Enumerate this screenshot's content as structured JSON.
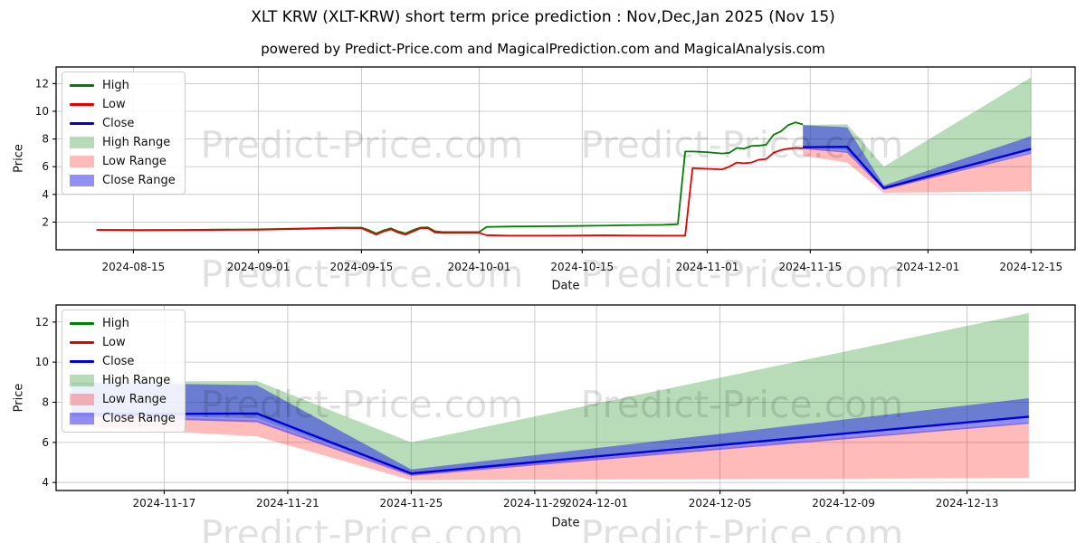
{
  "page": {
    "title": "XLT KRW (XLT-KRW) short term price prediction : Nov,Dec,Jan 2025 (Nov 15)",
    "axes_title": "powered by Predict-Price.com and MagicalPrediction.com and MagicalAnalysis.com",
    "watermark": "Predict-Price.com"
  },
  "colors": {
    "high": "#008000",
    "low": "#e60000",
    "close": "#0000e0",
    "high_range": "rgba(0,128,0,0.28)",
    "low_range": "rgba(255,0,0,0.27)",
    "close_range": "rgba(20,20,235,0.47)",
    "grid": "#c6c6c6",
    "axis": "#000000",
    "text": "#111111",
    "watermark": "rgba(0,0,0,0.12)"
  },
  "legend": {
    "position": "upper left",
    "items": [
      {
        "label": "High",
        "type": "line",
        "color_key": "high"
      },
      {
        "label": "Low",
        "type": "line",
        "color_key": "low"
      },
      {
        "label": "Close",
        "type": "line",
        "color_key": "close"
      },
      {
        "label": "High Range",
        "type": "patch",
        "color_key": "high_range"
      },
      {
        "label": "Low Range",
        "type": "patch",
        "color_key": "low_range"
      },
      {
        "label": "Close Range",
        "type": "patch",
        "color_key": "close_range"
      }
    ]
  },
  "chart_data": [
    {
      "type": "line",
      "name": "overview-chart",
      "title": "powered by Predict-Price.com and MagicalPrediction.com and MagicalAnalysis.com",
      "xlabel": "Date",
      "ylabel": "Price",
      "grid": true,
      "legend_position": "upper left",
      "xlim": [
        "2024-08-04T12",
        "2024-12-21T00"
      ],
      "ylim": [
        0,
        13.2
      ],
      "yticks": [
        2,
        4,
        6,
        8,
        10,
        12
      ],
      "xticks": [
        "2024-08-15",
        "2024-09-01",
        "2024-09-15",
        "2024-10-01",
        "2024-10-15",
        "2024-11-01",
        "2024-11-15",
        "2024-12-01",
        "2024-12-15"
      ],
      "series": [
        {
          "name": "High",
          "type": "line",
          "color_key": "high",
          "width": 1.8,
          "x": [
            "2024-08-10",
            "2024-08-16",
            "2024-08-22",
            "2024-09-01",
            "2024-09-08",
            "2024-09-12",
            "2024-09-15",
            "2024-09-16",
            "2024-09-17",
            "2024-09-18",
            "2024-09-19",
            "2024-09-20",
            "2024-09-21",
            "2024-09-22",
            "2024-09-23",
            "2024-09-24",
            "2024-09-25",
            "2024-09-26",
            "2024-10-01",
            "2024-10-02",
            "2024-10-05",
            "2024-10-10",
            "2024-10-14",
            "2024-10-18",
            "2024-10-22",
            "2024-10-26",
            "2024-10-28",
            "2024-10-29",
            "2024-10-30",
            "2024-11-01",
            "2024-11-03",
            "2024-11-04",
            "2024-11-05",
            "2024-11-06",
            "2024-11-07",
            "2024-11-08",
            "2024-11-09",
            "2024-11-10",
            "2024-11-11",
            "2024-11-12",
            "2024-11-13",
            "2024-11-14"
          ],
          "y": [
            1.44,
            1.43,
            1.44,
            1.48,
            1.55,
            1.6,
            1.6,
            1.42,
            1.18,
            1.4,
            1.55,
            1.33,
            1.18,
            1.42,
            1.6,
            1.62,
            1.34,
            1.28,
            1.28,
            1.65,
            1.68,
            1.7,
            1.72,
            1.75,
            1.78,
            1.8,
            1.85,
            7.1,
            7.1,
            7.05,
            6.95,
            7.0,
            7.35,
            7.3,
            7.5,
            7.52,
            7.58,
            8.3,
            8.55,
            9.0,
            9.2,
            9.05
          ]
        },
        {
          "name": "Low",
          "type": "line",
          "color_key": "low",
          "width": 1.8,
          "x": [
            "2024-08-10",
            "2024-08-16",
            "2024-08-22",
            "2024-09-01",
            "2024-09-08",
            "2024-09-12",
            "2024-09-15",
            "2024-09-16",
            "2024-09-17",
            "2024-09-18",
            "2024-09-19",
            "2024-09-20",
            "2024-09-21",
            "2024-09-22",
            "2024-09-23",
            "2024-09-24",
            "2024-09-25",
            "2024-09-26",
            "2024-10-01",
            "2024-10-02",
            "2024-10-05",
            "2024-10-10",
            "2024-10-14",
            "2024-10-18",
            "2024-10-22",
            "2024-10-26",
            "2024-10-28",
            "2024-10-29",
            "2024-10-30",
            "2024-11-01",
            "2024-11-03",
            "2024-11-04",
            "2024-11-05",
            "2024-11-06",
            "2024-11-07",
            "2024-11-08",
            "2024-11-09",
            "2024-11-10",
            "2024-11-11",
            "2024-11-12",
            "2024-11-13",
            "2024-11-14"
          ],
          "y": [
            1.43,
            1.41,
            1.42,
            1.45,
            1.52,
            1.57,
            1.56,
            1.33,
            1.1,
            1.32,
            1.48,
            1.24,
            1.1,
            1.32,
            1.55,
            1.57,
            1.25,
            1.22,
            1.22,
            1.05,
            1.02,
            1.02,
            1.03,
            1.04,
            1.03,
            1.02,
            1.02,
            1.02,
            5.9,
            5.85,
            5.8,
            6.0,
            6.3,
            6.25,
            6.3,
            6.5,
            6.55,
            7.0,
            7.2,
            7.3,
            7.35,
            7.32
          ]
        },
        {
          "name": "Close",
          "type": "line",
          "color_key": "close",
          "width": 2.4,
          "x": [
            "2024-11-14",
            "2024-11-20",
            "2024-11-25",
            "2024-12-15"
          ],
          "y": [
            7.4,
            7.44,
            4.45,
            7.28
          ]
        },
        {
          "name": "High Range",
          "type": "band",
          "color_key": "high_range",
          "x": [
            "2024-11-14",
            "2024-11-20",
            "2024-11-25",
            "2024-12-15"
          ],
          "upper": [
            9.02,
            9.06,
            6.0,
            12.45
          ],
          "lower": [
            7.4,
            7.2,
            4.45,
            7.3
          ]
        },
        {
          "name": "Low Range",
          "type": "band",
          "color_key": "low_range",
          "x": [
            "2024-11-14",
            "2024-11-20",
            "2024-11-25",
            "2024-12-15"
          ],
          "upper": [
            7.4,
            7.1,
            4.45,
            7.0
          ],
          "lower": [
            6.8,
            6.3,
            4.12,
            4.22
          ]
        },
        {
          "name": "Close Range",
          "type": "band",
          "color_key": "close_range",
          "x": [
            "2024-11-14",
            "2024-11-20",
            "2024-11-25",
            "2024-12-15"
          ],
          "upper": [
            9.0,
            8.85,
            4.65,
            8.2
          ],
          "lower": [
            7.28,
            7.0,
            4.33,
            6.93
          ]
        }
      ]
    },
    {
      "type": "line",
      "name": "forecast-chart",
      "xlabel": "Date",
      "ylabel": "Price",
      "grid": true,
      "legend_position": "upper left",
      "xlim": [
        "2024-11-13T12",
        "2024-12-16T12"
      ],
      "ylim": [
        3.6,
        12.85
      ],
      "yticks": [
        4,
        6,
        8,
        10,
        12
      ],
      "xticks": [
        "2024-11-17",
        "2024-11-21",
        "2024-11-25",
        "2024-11-29",
        "2024-12-01",
        "2024-12-05",
        "2024-12-09",
        "2024-12-13"
      ],
      "series": [
        {
          "name": "Close",
          "type": "line",
          "color_key": "close",
          "width": 2.4,
          "x": [
            "2024-11-14",
            "2024-11-20",
            "2024-11-25",
            "2024-12-15"
          ],
          "y": [
            7.4,
            7.44,
            4.45,
            7.28
          ]
        },
        {
          "name": "High Range",
          "type": "band",
          "color_key": "high_range",
          "x": [
            "2024-11-14",
            "2024-11-20",
            "2024-11-25",
            "2024-12-15"
          ],
          "upper": [
            9.02,
            9.06,
            6.0,
            12.45
          ],
          "lower": [
            7.4,
            7.2,
            4.45,
            7.3
          ]
        },
        {
          "name": "Low Range",
          "type": "band",
          "color_key": "low_range",
          "x": [
            "2024-11-14",
            "2024-11-20",
            "2024-11-25",
            "2024-12-15"
          ],
          "upper": [
            7.4,
            7.1,
            4.45,
            7.0
          ],
          "lower": [
            6.8,
            6.3,
            4.12,
            4.22
          ]
        },
        {
          "name": "Close Range",
          "type": "band",
          "color_key": "close_range",
          "x": [
            "2024-11-14",
            "2024-11-20",
            "2024-11-25",
            "2024-12-15"
          ],
          "upper": [
            9.0,
            8.85,
            4.65,
            8.2
          ],
          "lower": [
            7.28,
            7.0,
            4.33,
            6.93
          ]
        }
      ]
    }
  ]
}
